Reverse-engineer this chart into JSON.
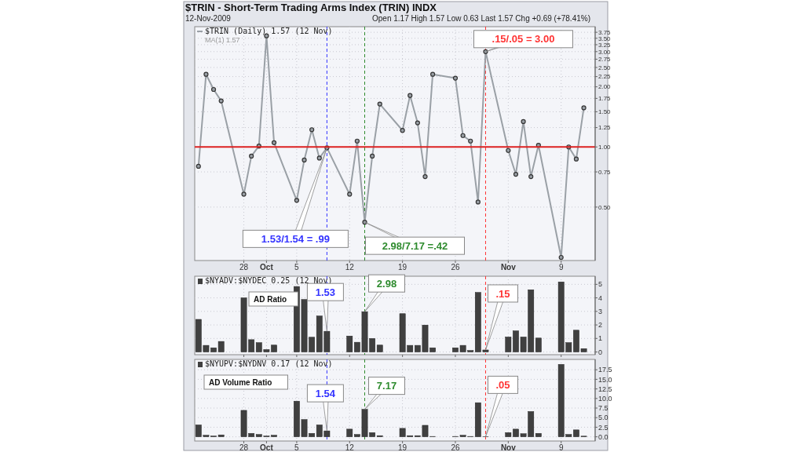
{
  "chart_data": [
    {
      "type": "line",
      "title": "$TRIN - Short-Term Trading Arms Index (TRIN) INDX",
      "x": [
        "2009-09-22",
        "2009-09-23",
        "2009-09-24",
        "2009-09-25",
        "2009-09-28",
        "2009-09-29",
        "2009-09-30",
        "2009-10-01",
        "2009-10-02",
        "2009-10-05",
        "2009-10-06",
        "2009-10-07",
        "2009-10-08",
        "2009-10-09",
        "2009-10-12",
        "2009-10-13",
        "2009-10-14",
        "2009-10-15",
        "2009-10-16",
        "2009-10-19",
        "2009-10-20",
        "2009-10-21",
        "2009-10-22",
        "2009-10-23",
        "2009-10-26",
        "2009-10-27",
        "2009-10-28",
        "2009-10-29",
        "2009-10-30",
        "2009-11-02",
        "2009-11-03",
        "2009-11-04",
        "2009-11-05",
        "2009-11-06",
        "2009-11-09",
        "2009-11-10",
        "2009-11-11",
        "2009-11-12"
      ],
      "series": [
        {
          "name": "$TRIN (Daily) 1.57 (12 Nov)",
          "color": "#9aa0a6",
          "values": [
            0.8,
            2.31,
            1.94,
            1.7,
            0.58,
            0.9,
            1.01,
            3.6,
            1.05,
            0.54,
            0.86,
            1.22,
            0.88,
            0.99,
            0.58,
            1.07,
            0.42,
            0.9,
            1.64,
            1.21,
            1.81,
            1.32,
            0.71,
            2.31,
            2.21,
            1.14,
            1.07,
            0.53,
            3.0,
            0.96,
            0.73,
            1.34,
            0.71,
            1.02,
            0.28,
            1.0,
            0.87,
            1.57
          ]
        }
      ],
      "log": true,
      "ylim": [
        0.27,
        4.0
      ],
      "xlim": [
        "2009-09-21T12:00",
        "2009-11-13T12:00"
      ],
      "yticks": [
        {
          "value": 0.5,
          "label": "0.50"
        },
        {
          "value": 0.75,
          "label": "0.75"
        },
        {
          "value": 1,
          "label": "1.00"
        },
        {
          "value": 1.25,
          "label": "1.25"
        },
        {
          "value": 1.5,
          "label": "1.50"
        },
        {
          "value": 1.75,
          "label": "1.75"
        },
        {
          "value": 2,
          "label": "2.00"
        },
        {
          "value": 2.25,
          "label": "2.25"
        },
        {
          "value": 2.5,
          "label": "2.50"
        },
        {
          "value": 2.75,
          "label": "2.75"
        },
        {
          "value": 3,
          "label": "3.00"
        },
        {
          "value": 3.25,
          "label": "3.25"
        },
        {
          "value": 3.5,
          "label": "3.50"
        },
        {
          "value": 3.75,
          "label": "3.75"
        }
      ],
      "xticks": [
        {
          "value": "2009-09-28",
          "label": "28"
        },
        {
          "value": "2009-10-01",
          "label": "Oct"
        },
        {
          "value": "2009-10-05",
          "label": "5"
        },
        {
          "value": "2009-10-12",
          "label": "12"
        },
        {
          "value": "2009-10-19",
          "label": "19"
        },
        {
          "value": "2009-10-26",
          "label": "26"
        },
        {
          "value": "2009-11-02",
          "label": "Nov"
        },
        {
          "value": "2009-11-09",
          "label": "9"
        }
      ],
      "grid": true,
      "legend": "top left",
      "marker": "circle",
      "line_style": "solid",
      "ref_lines": [
        {
          "axis": "y",
          "value": 1,
          "color": "#dd2222",
          "line_style": "solid"
        },
        {
          "axis": "x",
          "value": "2009-10-09",
          "color": "#3333ff",
          "line_style": "dashed"
        },
        {
          "axis": "x",
          "value": "2009-10-14",
          "color": "#2e8b2e",
          "line_style": "dashed"
        },
        {
          "axis": "x",
          "value": "2009-10-30",
          "color": "#ff3333",
          "line_style": "dashed"
        }
      ],
      "annotations": [
        "12-Nov-2009",
        "Open 1.17  High 1.57  Low 0.63  Last 1.57  Chg +0.69 (+78.41%)",
        "MA(1) 1.57",
        {
          "text": "1.53/1.54 = .99",
          "x": "2009-10-09",
          "y": 0.99
        },
        {
          "text": "2.98/7.17 =.42",
          "x": "2009-10-14",
          "y": 0.42
        },
        {
          "text": ".15/.05 = 3.00",
          "x": "2009-10-30",
          "y": 3.0
        }
      ]
    },
    {
      "type": "bar",
      "x": [
        "2009-09-22",
        "2009-09-23",
        "2009-09-24",
        "2009-09-25",
        "2009-09-28",
        "2009-09-29",
        "2009-09-30",
        "2009-10-01",
        "2009-10-02",
        "2009-10-05",
        "2009-10-06",
        "2009-10-07",
        "2009-10-08",
        "2009-10-09",
        "2009-10-12",
        "2009-10-13",
        "2009-10-14",
        "2009-10-15",
        "2009-10-16",
        "2009-10-19",
        "2009-10-20",
        "2009-10-21",
        "2009-10-22",
        "2009-10-23",
        "2009-10-26",
        "2009-10-27",
        "2009-10-28",
        "2009-10-29",
        "2009-10-30",
        "2009-11-02",
        "2009-11-03",
        "2009-11-04",
        "2009-11-05",
        "2009-11-06",
        "2009-11-09",
        "2009-11-10",
        "2009-11-11",
        "2009-11-12"
      ],
      "series": [
        {
          "name": "$NYADV:$NYDEC 0.25 (12 Nov)",
          "color": "#404040",
          "values": [
            2.41,
            0.49,
            0.31,
            0.78,
            4.0,
            0.91,
            0.69,
            0.18,
            0.51,
            4.84,
            3.88,
            1.09,
            2.66,
            1.53,
            1.18,
            0.72,
            2.98,
            1.0,
            0.51,
            2.83,
            0.49,
            0.49,
            1.99,
            0.31,
            0.31,
            0.49,
            0.11,
            4.4,
            0.15,
            1.11,
            1.56,
            1.11,
            4.6,
            1.03,
            5.18,
            0.69,
            1.61,
            0.25
          ]
        }
      ],
      "ylim": [
        -0.2,
        5.6
      ],
      "yticks": [
        0,
        1,
        2,
        3,
        4,
        5
      ],
      "xlim": [
        "2009-09-21T12:00",
        "2009-11-13T12:00"
      ],
      "xticks": [
        {
          "value": "2009-09-28",
          "label": null
        },
        {
          "value": "2009-10-01",
          "label": null
        },
        {
          "value": "2009-10-05",
          "label": null
        },
        {
          "value": "2009-10-12",
          "label": null
        },
        {
          "value": "2009-10-19",
          "label": null
        },
        {
          "value": "2009-10-26",
          "label": null
        },
        {
          "value": "2009-11-02",
          "label": null
        },
        {
          "value": "2009-11-09",
          "label": null
        }
      ],
      "tick_labels": "y",
      "grid": true,
      "legend": "top left",
      "ref_lines": [
        {
          "axis": "x",
          "value": "2009-10-09",
          "color": "#3333ff",
          "line_style": "dashed"
        },
        {
          "axis": "x",
          "value": "2009-10-14",
          "color": "#2e8b2e",
          "line_style": "dashed"
        },
        {
          "axis": "x",
          "value": "2009-10-30",
          "color": "#ff3333",
          "line_style": "dashed"
        }
      ],
      "annotations": [
        "AD Ratio",
        {
          "text": "1.53",
          "x": "2009-10-09",
          "y": 1.53
        },
        {
          "text": "2.98",
          "x": "2009-10-14",
          "y": 2.98
        },
        {
          "text": ".15",
          "x": "2009-10-30",
          "y": 0.15
        }
      ]
    },
    {
      "type": "bar",
      "x": [
        "2009-09-22",
        "2009-09-23",
        "2009-09-24",
        "2009-09-25",
        "2009-09-28",
        "2009-09-29",
        "2009-09-30",
        "2009-10-01",
        "2009-10-02",
        "2009-10-05",
        "2009-10-06",
        "2009-10-07",
        "2009-10-08",
        "2009-10-09",
        "2009-10-12",
        "2009-10-13",
        "2009-10-14",
        "2009-10-15",
        "2009-10-16",
        "2009-10-19",
        "2009-10-20",
        "2009-10-21",
        "2009-10-22",
        "2009-10-23",
        "2009-10-26",
        "2009-10-27",
        "2009-10-28",
        "2009-10-29",
        "2009-10-30",
        "2009-11-02",
        "2009-11-03",
        "2009-11-04",
        "2009-11-05",
        "2009-11-06",
        "2009-11-09",
        "2009-11-10",
        "2009-11-11",
        "2009-11-12"
      ],
      "series": [
        {
          "name": "$NYUPV:$NYDNV 0.17 (12 Nov)",
          "color": "#404040",
          "values": [
            3.1,
            0.4,
            0.2,
            0.5,
            6.9,
            0.9,
            0.6,
            0.2,
            0.4,
            9.3,
            4.5,
            0.9,
            3.1,
            1.54,
            2.0,
            0.6,
            7.17,
            1.1,
            0.3,
            2.2,
            0.3,
            0.3,
            3.0,
            0.1,
            0.1,
            0.4,
            0.1,
            8.9,
            0.05,
            1.1,
            2.0,
            0.8,
            6.6,
            0.9,
            18.9,
            0.6,
            1.8,
            0.17
          ]
        }
      ],
      "ylim": [
        -1.1,
        20.2
      ],
      "xlim": [
        "2009-09-21T12:00",
        "2009-11-13T12:00"
      ],
      "yticks": [
        {
          "value": 0,
          "label": "0.0"
        },
        {
          "value": 2.5,
          "label": "2.5"
        },
        {
          "value": 5,
          "label": "5.0"
        },
        {
          "value": 7.5,
          "label": "7.5"
        },
        {
          "value": 10,
          "label": "10.0"
        },
        {
          "value": 12.5,
          "label": "12.5"
        },
        {
          "value": 15,
          "label": "15.0"
        },
        {
          "value": 17.5,
          "label": "17.5"
        }
      ],
      "xticks": [
        {
          "value": "2009-09-28",
          "label": "28"
        },
        {
          "value": "2009-10-01",
          "label": "Oct"
        },
        {
          "value": "2009-10-05",
          "label": "5"
        },
        {
          "value": "2009-10-12",
          "label": "12"
        },
        {
          "value": "2009-10-19",
          "label": "19"
        },
        {
          "value": "2009-10-26",
          "label": "26"
        },
        {
          "value": "2009-11-02",
          "label": "Nov"
        },
        {
          "value": "2009-11-09",
          "label": "9"
        }
      ],
      "grid": true,
      "legend": "top left",
      "ref_lines": [
        {
          "axis": "x",
          "value": "2009-10-09",
          "color": "#3333ff",
          "line_style": "dashed"
        },
        {
          "axis": "x",
          "value": "2009-10-14",
          "color": "#2e8b2e",
          "line_style": "dashed"
        },
        {
          "axis": "x",
          "value": "2009-10-30",
          "color": "#ff3333",
          "line_style": "dashed"
        }
      ],
      "annotations": [
        "AD Volume Ratio",
        {
          "text": "1.54",
          "x": "2009-10-09",
          "y": 1.54
        },
        {
          "text": "7.17",
          "x": "2009-10-14",
          "y": 7.17
        },
        {
          "text": ".05",
          "x": "2009-10-30",
          "y": 0.05
        }
      ]
    }
  ]
}
